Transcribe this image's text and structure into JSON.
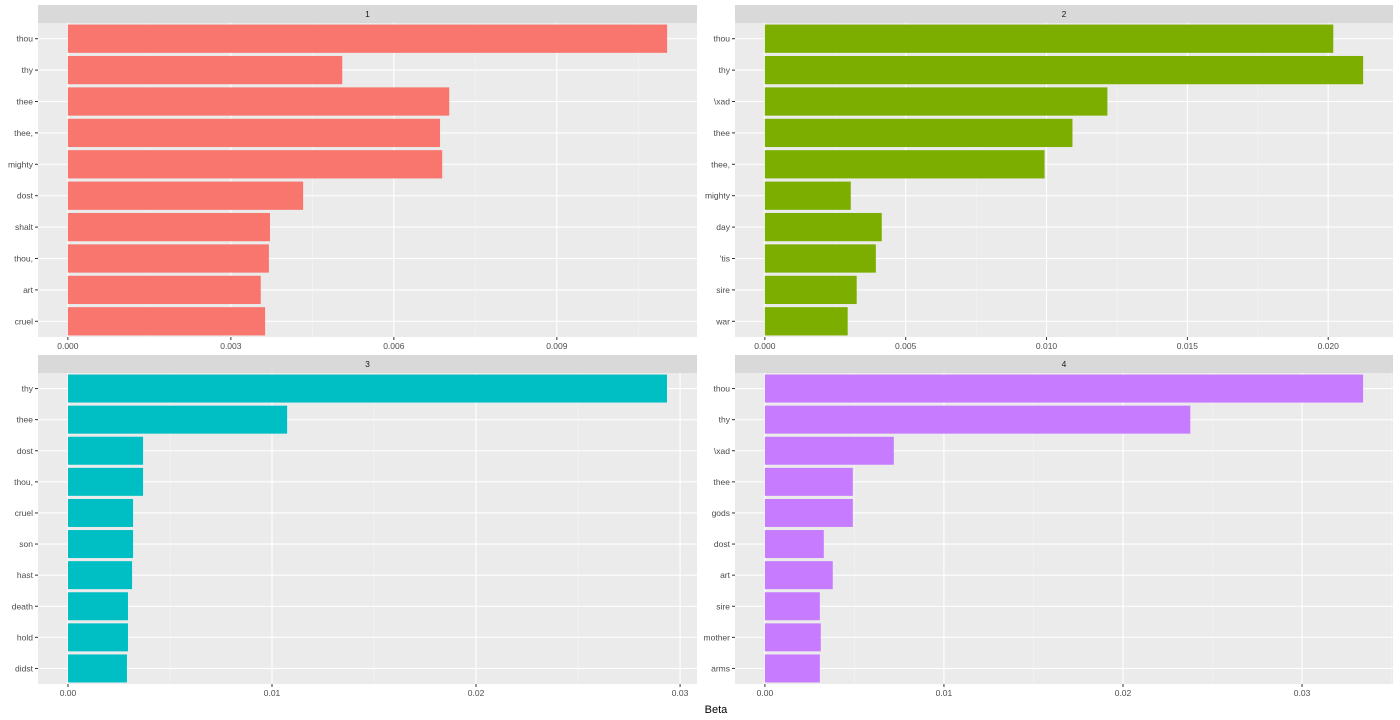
{
  "chart_data": {
    "type": "bar",
    "orientation": "horizontal",
    "xlabel": "Beta",
    "ylabel": "",
    "grid": true,
    "legend": "none",
    "panels": [
      {
        "title": "1",
        "color": "#F8766D",
        "categories": [
          "thou",
          "thy",
          "thee",
          "thee,",
          "mighty",
          "dost",
          "shalt",
          "thou,",
          "art",
          "cruel"
        ],
        "values": [
          0.01103,
          0.00505,
          0.00702,
          0.00685,
          0.00689,
          0.00433,
          0.00372,
          0.0037,
          0.00355,
          0.00363
        ],
        "xlim": [
          -0.00055,
          0.01158
        ],
        "ticks": [
          0,
          0.003,
          0.006,
          0.009
        ],
        "tick_labels": [
          "0.000",
          "0.003",
          "0.006",
          "0.009"
        ]
      },
      {
        "title": "2",
        "color": "#7CAE00",
        "categories": [
          "thou",
          "thy",
          "\\xad",
          "thee",
          "thee,",
          "mighty",
          "day",
          "'tis",
          "sire",
          "war"
        ],
        "values": [
          0.02018,
          0.02124,
          0.01216,
          0.01092,
          0.00993,
          0.00305,
          0.00415,
          0.00394,
          0.00326,
          0.00294
        ],
        "xlim": [
          -0.00106,
          0.0223
        ],
        "ticks": [
          0,
          0.005,
          0.01,
          0.015,
          0.02
        ],
        "tick_labels": [
          "0.000",
          "0.005",
          "0.010",
          "0.015",
          "0.020"
        ]
      },
      {
        "title": "3",
        "color": "#00BFC4",
        "categories": [
          "thy",
          "thee",
          "dost",
          "thou,",
          "cruel",
          "son",
          "hast",
          "death",
          "hold",
          "didst"
        ],
        "values": [
          0.02936,
          0.01074,
          0.00368,
          0.00368,
          0.00319,
          0.00319,
          0.00314,
          0.00294,
          0.00294,
          0.00289
        ],
        "xlim": [
          -0.00147,
          0.03083
        ],
        "ticks": [
          0,
          0.01,
          0.02,
          0.03
        ],
        "tick_labels": [
          "0.00",
          "0.01",
          "0.02",
          "0.03"
        ]
      },
      {
        "title": "4",
        "color": "#C77CFF",
        "categories": [
          "thou",
          "thy",
          "\\xad",
          "thee",
          "gods",
          "dost",
          "art",
          "sire",
          "mother",
          "arms"
        ],
        "values": [
          0.03341,
          0.02376,
          0.0072,
          0.00491,
          0.00491,
          0.00329,
          0.00379,
          0.00307,
          0.00312,
          0.00307
        ],
        "xlim": [
          -0.00167,
          0.03508
        ],
        "ticks": [
          0,
          0.01,
          0.02,
          0.03
        ],
        "tick_labels": [
          "0.00",
          "0.01",
          "0.02",
          "0.03"
        ]
      }
    ]
  }
}
